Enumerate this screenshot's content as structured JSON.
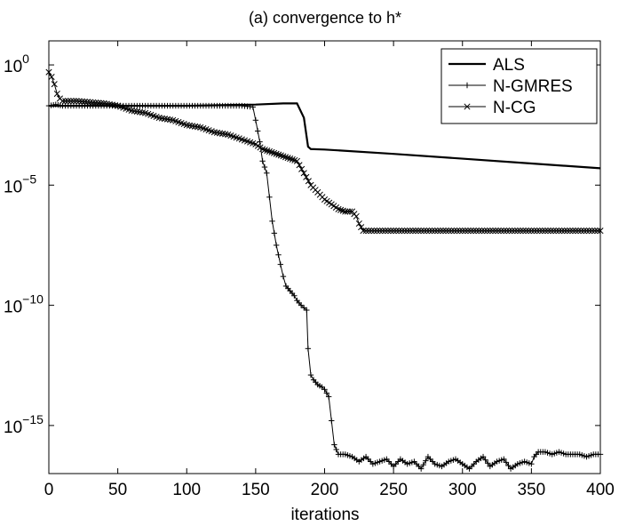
{
  "chart_data": {
    "type": "line",
    "title": "(a) convergence to h*",
    "xlabel": "iterations",
    "ylabel": "",
    "xlim": [
      0,
      400
    ],
    "ylim_exponent": [
      -17,
      1
    ],
    "y_scale": "log",
    "x_ticks": [
      0,
      50,
      100,
      150,
      200,
      250,
      300,
      350,
      400
    ],
    "x_tick_labels": [
      "0",
      "50",
      "100",
      "150",
      "200",
      "250",
      "300",
      "350",
      "400"
    ],
    "y_tick_exponents": [
      0,
      -5,
      -10,
      -15
    ],
    "y_tick_label_base": "10",
    "y_tick_label_exponents": [
      "0",
      "−5",
      "−10",
      "−15"
    ],
    "grid": false,
    "legend_position": "top-right",
    "series": [
      {
        "name": "ALS",
        "style": "solid-thick",
        "color": "#000000",
        "x": [
          0,
          10,
          50,
          100,
          150,
          170,
          180,
          185,
          188,
          190,
          200,
          250,
          300,
          350,
          400
        ],
        "log10_y": [
          -1.7,
          -1.7,
          -1.7,
          -1.7,
          -1.65,
          -1.6,
          -1.6,
          -2.2,
          -3.4,
          -3.5,
          -3.52,
          -3.7,
          -3.9,
          -4.1,
          -4.3
        ]
      },
      {
        "name": "N-GMRES",
        "style": "plus-marker",
        "color": "#000000",
        "x": [
          0,
          5,
          10,
          20,
          30,
          40,
          50,
          60,
          70,
          80,
          90,
          100,
          110,
          120,
          130,
          140,
          148,
          150,
          153,
          155,
          158,
          160,
          162,
          165,
          168,
          170,
          172,
          175,
          178,
          180,
          183,
          185,
          187,
          188,
          190,
          192,
          195,
          198,
          200,
          203,
          205,
          207,
          210,
          215,
          220,
          225,
          230,
          235,
          240,
          245,
          250,
          255,
          260,
          265,
          270,
          275,
          280,
          285,
          290,
          295,
          300,
          305,
          310,
          315,
          320,
          325,
          330,
          335,
          340,
          345,
          350,
          352,
          355,
          360,
          365,
          370,
          375,
          380,
          385,
          390,
          395,
          400
        ],
        "log10_y": [
          -1.7,
          -1.65,
          -1.7,
          -1.7,
          -1.7,
          -1.7,
          -1.7,
          -1.7,
          -1.7,
          -1.7,
          -1.7,
          -1.7,
          -1.7,
          -1.7,
          -1.7,
          -1.7,
          -1.75,
          -2.3,
          -3.2,
          -4.0,
          -4.5,
          -5.5,
          -6.5,
          -7.5,
          -8.3,
          -8.8,
          -9.2,
          -9.4,
          -9.6,
          -9.8,
          -10.0,
          -10.1,
          -10.2,
          -11.8,
          -12.9,
          -13.1,
          -13.3,
          -13.4,
          -13.5,
          -13.8,
          -14.8,
          -15.8,
          -16.2,
          -16.2,
          -16.3,
          -16.5,
          -16.3,
          -16.6,
          -16.5,
          -16.4,
          -16.7,
          -16.4,
          -16.6,
          -16.5,
          -16.8,
          -16.3,
          -16.6,
          -16.7,
          -16.5,
          -16.4,
          -16.6,
          -16.8,
          -16.5,
          -16.3,
          -16.7,
          -16.5,
          -16.4,
          -16.8,
          -16.6,
          -16.5,
          -16.6,
          -16.3,
          -16.1,
          -16.1,
          -16.2,
          -16.1,
          -16.2,
          -16.2,
          -16.2,
          -16.3,
          -16.2,
          -16.2
        ]
      },
      {
        "name": "N-CG",
        "style": "x-marker",
        "color": "#000000",
        "x": [
          0,
          2,
          4,
          6,
          8,
          10,
          20,
          30,
          40,
          50,
          60,
          70,
          80,
          90,
          100,
          110,
          120,
          130,
          140,
          150,
          155,
          160,
          165,
          170,
          175,
          180,
          185,
          190,
          195,
          200,
          205,
          210,
          215,
          220,
          223,
          225,
          228,
          230,
          250,
          300,
          350,
          400
        ],
        "log10_y": [
          -0.3,
          -0.5,
          -0.8,
          -1.2,
          -1.4,
          -1.5,
          -1.5,
          -1.55,
          -1.6,
          -1.7,
          -1.9,
          -2.0,
          -2.2,
          -2.3,
          -2.5,
          -2.6,
          -2.8,
          -2.9,
          -3.1,
          -3.3,
          -3.5,
          -3.6,
          -3.7,
          -3.8,
          -3.9,
          -4.0,
          -4.5,
          -5.0,
          -5.3,
          -5.6,
          -5.8,
          -6.0,
          -6.1,
          -6.1,
          -6.3,
          -6.6,
          -6.9,
          -6.9,
          -6.9,
          -6.9,
          -6.9,
          -6.9
        ]
      }
    ]
  }
}
